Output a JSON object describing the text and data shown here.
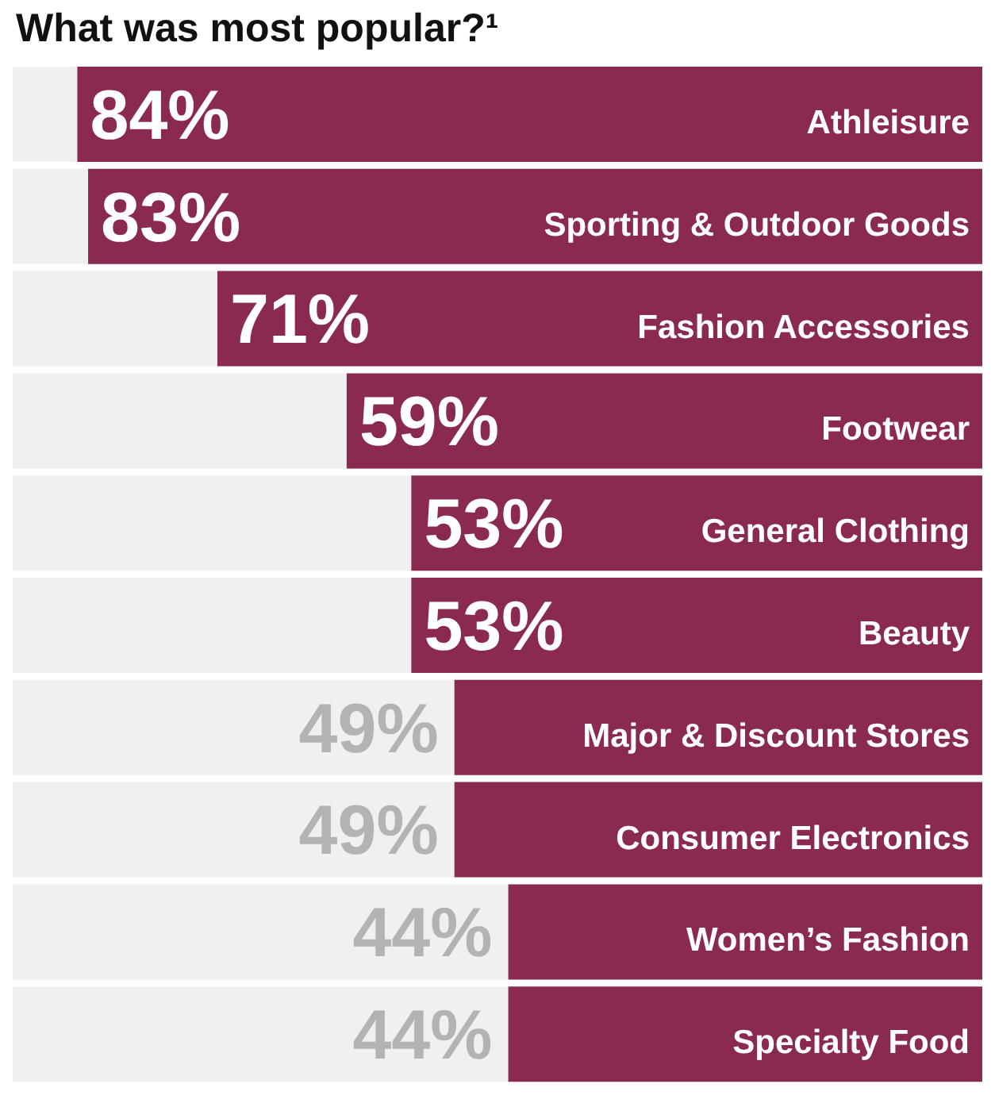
{
  "chart_data": {
    "type": "bar",
    "orientation": "horizontal",
    "title": "What was most popular?¹",
    "categories": [
      "Athleisure",
      "Sporting & Outdoor Goods",
      "Fashion Accessories",
      "Footwear",
      "General Clothing",
      "Beauty",
      "Major & Discount Stores",
      "Consumer Electronics",
      "Women’s Fashion",
      "Specialty Food"
    ],
    "values": [
      84,
      83,
      71,
      59,
      53,
      53,
      49,
      49,
      44,
      44
    ],
    "value_labels": [
      "84%",
      "83%",
      "71%",
      "59%",
      "53%",
      "53%",
      "49%",
      "49%",
      "44%",
      "44%"
    ],
    "color": "#8a2a50",
    "xlim": [
      90,
      0
    ],
    "tick_labels": false,
    "grid": false,
    "legend": false
  }
}
